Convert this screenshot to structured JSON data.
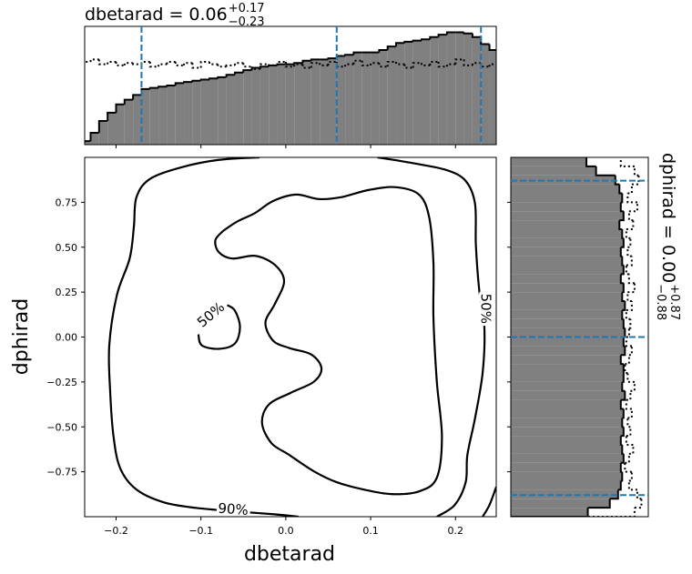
{
  "chart_data": [
    {
      "type": "histogram",
      "orientation": "vertical",
      "title": {
        "text": "dbetarad = 0.06",
        "sup": "+0.17",
        "sub": "−0.23"
      },
      "bins": [
        -0.24,
        -0.23,
        -0.22,
        -0.21,
        -0.2,
        -0.19,
        -0.18,
        -0.17,
        -0.16,
        -0.15,
        -0.14,
        -0.13,
        -0.12,
        -0.11,
        -0.1,
        -0.09,
        -0.08,
        -0.07,
        -0.06,
        -0.05,
        -0.04,
        -0.03,
        -0.02,
        -0.01,
        0,
        0.01,
        0.02,
        0.03,
        0.04,
        0.05,
        0.06,
        0.07,
        0.08,
        0.09,
        0.1,
        0.11,
        0.12,
        0.13,
        0.14,
        0.15,
        0.16,
        0.17,
        0.18,
        0.19,
        0.2,
        0.21,
        0.22,
        0.23,
        0.24,
        0.25
      ],
      "series": [
        {
          "color": "#808080",
          "edgecolor": "#000000",
          "linestyle": "solid",
          "values": [
            0.03,
            0.1,
            0.2,
            0.27,
            0.34,
            0.38,
            0.42,
            0.47,
            0.48,
            0.49,
            0.5,
            0.52,
            0.53,
            0.54,
            0.55,
            0.56,
            0.57,
            0.59,
            0.61,
            0.63,
            0.65,
            0.66,
            0.67,
            0.68,
            0.68,
            0.69,
            0.71,
            0.72,
            0.72,
            0.73,
            0.75,
            0.76,
            0.78,
            0.78,
            0.78,
            0.8,
            0.83,
            0.86,
            0.87,
            0.88,
            0.89,
            0.91,
            0.93,
            0.95,
            0.95,
            0.94,
            0.91,
            0.85,
            0.8
          ]
        },
        {
          "color": "none",
          "edgecolor": "#000000",
          "linestyle": "dotted",
          "values": [
            0.7,
            0.72,
            0.68,
            0.7,
            0.67,
            0.69,
            0.68,
            0.7,
            0.66,
            0.68,
            0.7,
            0.67,
            0.69,
            0.65,
            0.7,
            0.68,
            0.66,
            0.67,
            0.69,
            0.66,
            0.64,
            0.68,
            0.67,
            0.7,
            0.66,
            0.68,
            0.65,
            0.69,
            0.67,
            0.7,
            0.66,
            0.68,
            0.71,
            0.67,
            0.69,
            0.66,
            0.7,
            0.68,
            0.65,
            0.69,
            0.67,
            0.7,
            0.66,
            0.68,
            0.72,
            0.67,
            0.69,
            0.66,
            0.68
          ]
        }
      ],
      "quantiles": [
        -0.17,
        0.06,
        0.23
      ],
      "quantile_color": "#1f77b4",
      "xlim": [
        -0.237,
        0.248
      ],
      "ylim": [
        0,
        1
      ]
    },
    {
      "type": "contour",
      "xlabel": "dbetarad",
      "ylabel": "dphirad",
      "color": "#000000",
      "xlim": [
        -0.237,
        0.248
      ],
      "ylim": [
        -1,
        1
      ],
      "xticks": [
        {
          "value": -0.2,
          "label": "−0.2"
        },
        {
          "value": -0.1,
          "label": "−0.1"
        },
        {
          "value": 0,
          "label": "0.0"
        },
        0.1,
        0.2
      ],
      "yticks": [
        {
          "value": -0.75,
          "label": "−0.75"
        },
        {
          "value": -0.5,
          "label": "−0.50"
        },
        {
          "value": -0.25,
          "label": "−0.25"
        },
        {
          "value": 0,
          "label": "0.00"
        },
        0.25,
        {
          "value": 0.5,
          "label": "0.50"
        },
        0.75
      ],
      "contours": [
        {
          "x": [
            -0.031,
            -0.079,
            -0.122,
            -0.16,
            -0.176,
            -0.179,
            -0.184,
            -0.199,
            -0.208,
            -0.207,
            -0.203,
            -0.195,
            -0.176,
            -0.144,
            -0.106,
            -0.058,
            -0.015,
            0.015
          ],
          "y": [
            1.0,
            0.986,
            0.946,
            0.88,
            0.778,
            0.615,
            0.437,
            0.234,
            -0.046,
            -0.3,
            -0.554,
            -0.732,
            -0.849,
            -0.92,
            -0.951,
            -0.971,
            -0.986,
            -1.0
          ]
        },
        {
          "x": [
            0.108,
            0.146,
            0.189,
            0.212,
            0.223,
            0.224,
            0.228,
            0.234,
            0.232,
            0.223,
            0.214,
            0.212,
            0.199,
            0.178
          ],
          "y": [
            1.0,
            0.971,
            0.93,
            0.869,
            0.742,
            0.513,
            0.259,
            0.056,
            -0.198,
            -0.452,
            -0.656,
            -0.808,
            -0.935,
            -1.0
          ]
        },
        {
          "x": [
            0.232,
            0.24,
            0.248
          ],
          "y": [
            -1.0,
            -0.935,
            -0.834
          ]
        },
        {
          "x": [
            -0.074,
            -0.058,
            -0.036,
            -0.015,
            0.012,
            0.039,
            0.065,
            0.098,
            0.13,
            0.157,
            0.169,
            0.174,
            0.174,
            0.178,
            0.184,
            0.178,
            0.157,
            0.124,
            0.092,
            0.06,
            0.033,
            0.004,
            -0.017,
            -0.028,
            -0.02,
            0.006,
            0.033,
            0.042,
            0.03,
            0.004,
            -0.015,
            -0.024,
            -0.013,
            -0.002,
            -0.013,
            -0.036,
            -0.063,
            -0.079,
            -0.083,
            -0.074
          ],
          "y": [
            0.59,
            0.641,
            0.691,
            0.757,
            0.793,
            0.768,
            0.778,
            0.819,
            0.834,
            0.793,
            0.666,
            0.412,
            0.107,
            -0.249,
            -0.554,
            -0.783,
            -0.859,
            -0.874,
            -0.849,
            -0.808,
            -0.747,
            -0.656,
            -0.59,
            -0.478,
            -0.376,
            -0.31,
            -0.249,
            -0.173,
            -0.097,
            -0.061,
            -0.02,
            0.081,
            0.183,
            0.31,
            0.402,
            0.452,
            0.437,
            0.473,
            0.539,
            0.59
          ]
        },
        {
          "x": [
            -0.103,
            -0.099,
            -0.079,
            -0.06,
            -0.054,
            -0.06,
            -0.069
          ],
          "y": [
            0.015,
            -0.046,
            -0.066,
            -0.036,
            0.056,
            0.147,
            0.178
          ]
        }
      ],
      "contour_labels": [
        {
          "text": "50%",
          "x": -0.088,
          "y": 0.122
        },
        {
          "text": "50%",
          "x": 0.235,
          "y": 0.158
        },
        {
          "text": "90%",
          "x": -0.062,
          "y": -0.961
        }
      ]
    },
    {
      "type": "histogram",
      "orientation": "horizontal",
      "title": {
        "text": "dphirad = 0.00",
        "sup": "+0.87",
        "sub": "−0.88"
      },
      "bins": [
        -1,
        -0.95,
        -0.9,
        -0.85,
        -0.8,
        -0.75,
        -0.7,
        -0.65,
        -0.6,
        -0.55,
        -0.5,
        -0.45,
        -0.4,
        -0.35,
        -0.3,
        -0.25,
        -0.2,
        -0.15,
        -0.1,
        -0.05,
        0,
        0.05,
        0.1,
        0.15,
        0.2,
        0.25,
        0.3,
        0.35,
        0.4,
        0.45,
        0.5,
        0.55,
        0.6,
        0.65,
        0.7,
        0.75,
        0.8,
        0.85,
        0.9,
        0.95,
        1
      ],
      "series": [
        {
          "color": "#808080",
          "edgecolor": "#000000",
          "linestyle": "solid",
          "values": [
            0.56,
            0.72,
            0.78,
            0.8,
            0.81,
            0.8,
            0.82,
            0.81,
            0.8,
            0.82,
            0.81,
            0.82,
            0.8,
            0.83,
            0.81,
            0.82,
            0.82,
            0.8,
            0.83,
            0.82,
            0.83,
            0.82,
            0.81,
            0.83,
            0.81,
            0.82,
            0.8,
            0.82,
            0.81,
            0.8,
            0.82,
            0.81,
            0.79,
            0.82,
            0.8,
            0.81,
            0.79,
            0.76,
            0.62,
            0.55
          ]
        },
        {
          "color": "none",
          "edgecolor": "#000000",
          "linestyle": "dotted",
          "values": [
            0.9,
            0.95,
            0.92,
            0.86,
            0.88,
            0.83,
            0.86,
            0.89,
            0.84,
            0.87,
            0.85,
            0.88,
            0.84,
            0.87,
            0.9,
            0.85,
            0.83,
            0.86,
            0.88,
            0.84,
            0.86,
            0.87,
            0.84,
            0.88,
            0.85,
            0.9,
            0.86,
            0.84,
            0.88,
            0.85,
            0.87,
            0.84,
            0.89,
            0.86,
            0.92,
            0.85,
            0.88,
            0.93,
            0.9,
            0.8
          ]
        }
      ],
      "quantiles": [
        -0.88,
        0,
        0.87
      ],
      "quantile_color": "#1f77b4",
      "xlim": [
        0,
        1
      ],
      "ylim": [
        -1,
        1
      ]
    }
  ]
}
